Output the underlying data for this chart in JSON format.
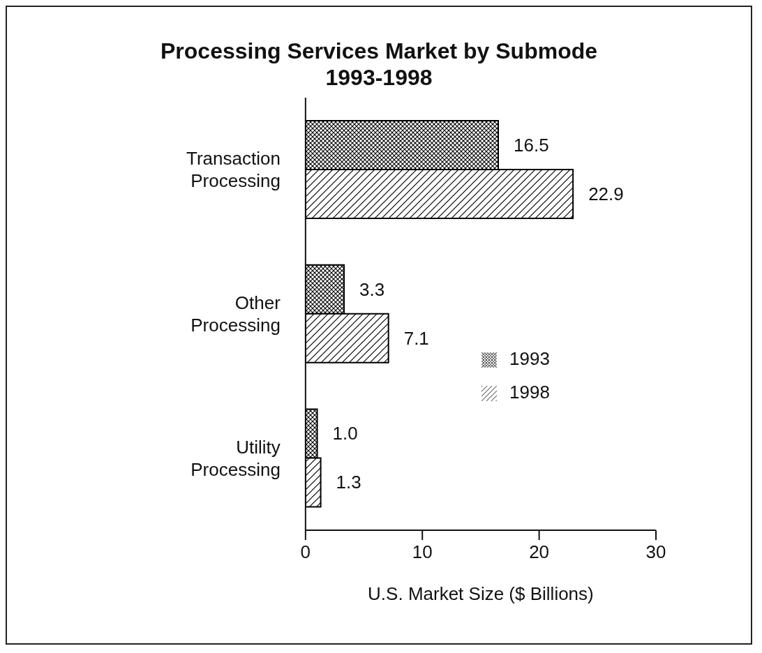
{
  "chart_data": {
    "type": "bar",
    "orientation": "horizontal",
    "title": "Processing Services Market by Submode",
    "subtitle": "1993-1998",
    "xlabel": "U.S. Market Size ($ Billions)",
    "categories": [
      "Transaction Processing",
      "Other Processing",
      "Utility Processing"
    ],
    "series": [
      {
        "name": "1993",
        "color": "#000000",
        "values": [
          16.5,
          3.3,
          1.0
        ],
        "value_labels": [
          "16.5",
          "3.3",
          "1.0"
        ]
      },
      {
        "name": "1998",
        "color": "#000000",
        "values": [
          22.9,
          7.1,
          1.3
        ],
        "value_labels": [
          "22.9",
          "7.1",
          "1.3"
        ]
      }
    ],
    "xlim": [
      0,
      30
    ],
    "xticks": [
      0,
      10,
      20,
      30
    ],
    "legend": "right",
    "grid": false
  }
}
